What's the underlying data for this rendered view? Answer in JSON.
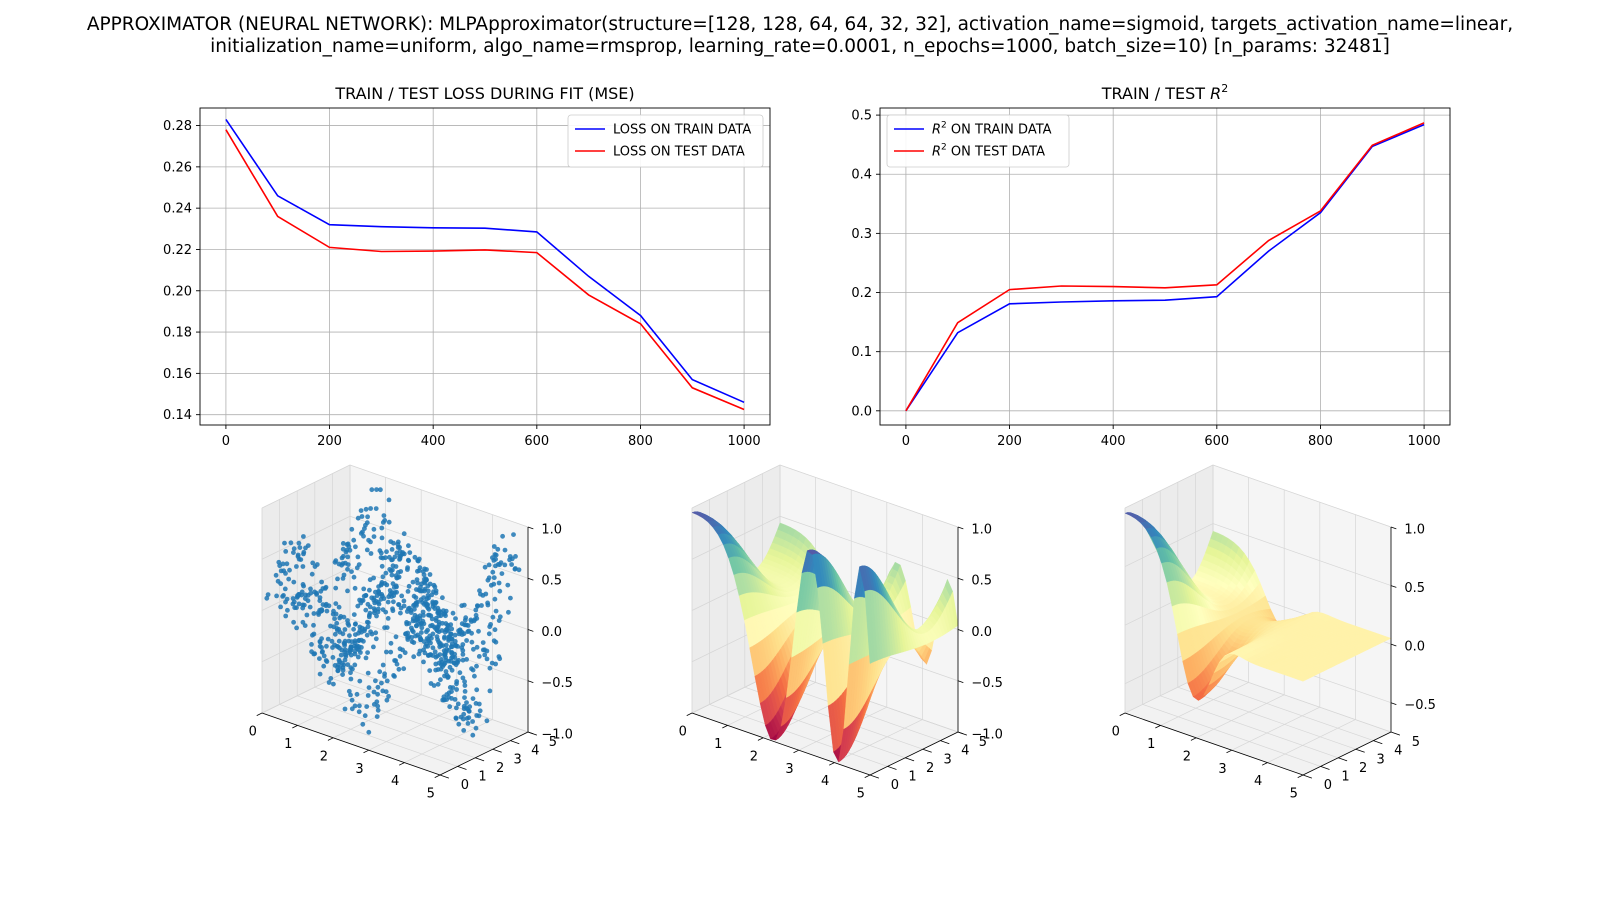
{
  "suptitle": {
    "line1": "APPROXIMATOR (NEURAL NETWORK): MLPApproximator(structure=[128, 128, 64, 64, 32, 32], activation_name=sigmoid, targets_activation_name=linear,",
    "line2": "initialization_name=uniform, algo_name=rmsprop, learning_rate=0.0001, n_epochs=1000, batch_size=10) [n_params: 32481]"
  },
  "chart_data": [
    {
      "type": "line",
      "title": "TRAIN / TEST LOSS DURING FIT (MSE)",
      "xlabel": "",
      "ylabel": "",
      "x": [
        0,
        100,
        200,
        300,
        400,
        500,
        600,
        700,
        800,
        900,
        1000
      ],
      "series": [
        {
          "name": "LOSS ON TRAIN DATA",
          "color": "#0000ff",
          "values": [
            0.283,
            0.246,
            0.232,
            0.231,
            0.2305,
            0.2303,
            0.2285,
            0.207,
            0.188,
            0.157,
            0.146
          ]
        },
        {
          "name": "LOSS ON TEST DATA",
          "color": "#ff0000",
          "values": [
            0.278,
            0.236,
            0.221,
            0.219,
            0.2192,
            0.2198,
            0.2185,
            0.198,
            0.184,
            0.153,
            0.1425
          ]
        }
      ],
      "xlim": [
        -50,
        1050
      ],
      "ylim": [
        0.135,
        0.2885
      ],
      "xticks": [
        0,
        200,
        400,
        600,
        800,
        1000
      ],
      "yticks": [
        0.14,
        0.16,
        0.18,
        0.2,
        0.22,
        0.24,
        0.26,
        0.28
      ],
      "ytick_labels": [
        "0.14",
        "0.16",
        "0.18",
        "0.20",
        "0.22",
        "0.24",
        "0.26",
        "0.28"
      ],
      "grid": true,
      "legend": "upper right"
    },
    {
      "type": "line",
      "title": "TRAIN / TEST R^2",
      "title_text": "TRAIN / TEST ",
      "title_math": "R",
      "title_sup": "2",
      "xlabel": "",
      "ylabel": "",
      "x": [
        0,
        100,
        200,
        300,
        400,
        500,
        600,
        700,
        800,
        900,
        1000
      ],
      "series": [
        {
          "name": "R^2 ON TRAIN DATA",
          "label_math": "R",
          "label_sup": "2",
          "label_rest": " ON TRAIN DATA",
          "color": "#0000ff",
          "values": [
            0.0,
            0.132,
            0.181,
            0.184,
            0.186,
            0.187,
            0.193,
            0.27,
            0.335,
            0.447,
            0.484
          ]
        },
        {
          "name": "R^2 ON TEST DATA",
          "label_math": "R",
          "label_sup": "2",
          "label_rest": " ON TEST DATA",
          "color": "#ff0000",
          "values": [
            0.0,
            0.149,
            0.205,
            0.211,
            0.21,
            0.208,
            0.213,
            0.288,
            0.338,
            0.449,
            0.487
          ]
        }
      ],
      "xlim": [
        -50,
        1050
      ],
      "ylim": [
        -0.024,
        0.512
      ],
      "xticks": [
        0,
        200,
        400,
        600,
        800,
        1000
      ],
      "yticks": [
        0.0,
        0.1,
        0.2,
        0.3,
        0.4,
        0.5
      ],
      "ytick_labels": [
        "0.0",
        "0.1",
        "0.2",
        "0.3",
        "0.4",
        "0.5"
      ],
      "grid": true,
      "legend": "upper left"
    },
    {
      "type": "scatter",
      "subtype": "3d-scatter",
      "title": "",
      "n_points": 1000,
      "xlim": [
        0,
        5
      ],
      "ylim": [
        0,
        5
      ],
      "zlim": [
        -1,
        1
      ],
      "xticks": [
        "0",
        "1",
        "2",
        "3",
        "4",
        "5"
      ],
      "yticks": [
        "0",
        "1",
        "2",
        "3",
        "4",
        "5"
      ],
      "zticks": [
        "−1.0",
        "−0.5",
        "0.0",
        "0.5",
        "1.0"
      ],
      "color": "#1f77b4"
    },
    {
      "type": "heatmap",
      "subtype": "3d-surface",
      "title": "",
      "surface": "target function",
      "xlim": [
        0,
        5
      ],
      "ylim": [
        0,
        5
      ],
      "zlim": [
        -1,
        1
      ],
      "xticks": [
        "0",
        "1",
        "2",
        "3",
        "4",
        "5"
      ],
      "yticks": [
        "0",
        "1",
        "2",
        "3",
        "4",
        "5"
      ],
      "zticks": [
        "−1.0",
        "−0.5",
        "0.0",
        "0.5",
        "1.0"
      ],
      "colormap": "Spectral"
    },
    {
      "type": "heatmap",
      "subtype": "3d-surface",
      "title": "",
      "surface": "approximation",
      "xlim": [
        0,
        5
      ],
      "ylim": [
        0,
        5
      ],
      "zlim": [
        -0.75,
        1
      ],
      "xticks": [
        "0",
        "1",
        "2",
        "3",
        "4",
        "5"
      ],
      "yticks": [
        "0",
        "1",
        "2",
        "3",
        "4",
        "5"
      ],
      "zticks": [
        "−0.5",
        "0.0",
        "0.5",
        "1.0"
      ],
      "colormap": "Spectral"
    }
  ]
}
